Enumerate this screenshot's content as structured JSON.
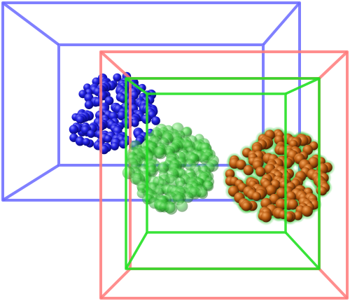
{
  "scene": {
    "background": "#ffffff",
    "boxes": [
      {
        "id": "blue-box",
        "color": "#6a6aff"
      },
      {
        "id": "red-box",
        "color": "#ff7a7a"
      },
      {
        "id": "green-box",
        "color": "#22e022"
      }
    ],
    "clusters": [
      {
        "id": "blue-cluster",
        "color": "#1a1ad8",
        "highlight": "#7a7aff",
        "style": "solid"
      },
      {
        "id": "green-cluster",
        "color": "#24b824",
        "highlight": "#8ff08f",
        "style": "translucent"
      },
      {
        "id": "orange-cluster",
        "color": "#b85a10",
        "highlight": "#f0a050",
        "style": "solid-with-halo",
        "halo": "#3cc83c"
      }
    ]
  }
}
